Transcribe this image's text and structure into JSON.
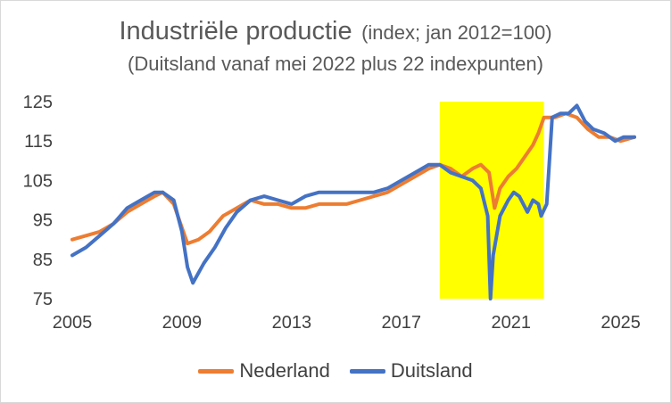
{
  "chart_data": {
    "type": "line",
    "title": "Industriële productie",
    "title_note": "(index; jan 2012=100)",
    "subtitle": "(Duitsland vanaf mei 2022 plus 22 indexpunten)",
    "xlabel": "",
    "ylabel": "",
    "xlim": [
      2005,
      2025.5
    ],
    "ylim": [
      75,
      125
    ],
    "x_ticks": [
      2005,
      2009,
      2013,
      2017,
      2021,
      2025
    ],
    "y_ticks": [
      75,
      85,
      95,
      105,
      115,
      125
    ],
    "grid": false,
    "legend_position": "bottom",
    "highlight_band": {
      "x_start": 2018.4,
      "x_end": 2022.2,
      "color": "#ffff00"
    },
    "series": [
      {
        "name": "Nederland",
        "color": "#ed7d31",
        "x": [
          2005.0,
          2005.5,
          2006.0,
          2006.5,
          2007.0,
          2007.5,
          2008.0,
          2008.3,
          2008.7,
          2009.0,
          2009.2,
          2009.6,
          2010.0,
          2010.5,
          2011.0,
          2011.5,
          2012.0,
          2012.5,
          2013.0,
          2013.5,
          2014.0,
          2014.5,
          2015.0,
          2015.5,
          2016.0,
          2016.5,
          2017.0,
          2017.5,
          2018.0,
          2018.4,
          2018.8,
          2019.2,
          2019.6,
          2019.9,
          2020.2,
          2020.4,
          2020.6,
          2020.9,
          2021.2,
          2021.5,
          2021.8,
          2022.0,
          2022.2,
          2022.6,
          2023.0,
          2023.4,
          2023.8,
          2024.2,
          2024.6,
          2025.0,
          2025.5
        ],
        "values": [
          90,
          91,
          92,
          94,
          97,
          99,
          101,
          102,
          99,
          93,
          89,
          90,
          92,
          96,
          98,
          100,
          99,
          99,
          98,
          98,
          99,
          99,
          99,
          100,
          101,
          102,
          104,
          106,
          108,
          109,
          108,
          106,
          108,
          109,
          107,
          98,
          103,
          106,
          108,
          111,
          114,
          117,
          121,
          121,
          122,
          121,
          118,
          116,
          116,
          115,
          116
        ]
      },
      {
        "name": "Duitsland",
        "color": "#4472c4",
        "x": [
          2005.0,
          2005.5,
          2006.0,
          2006.5,
          2007.0,
          2007.5,
          2008.0,
          2008.3,
          2008.7,
          2009.0,
          2009.2,
          2009.4,
          2009.8,
          2010.2,
          2010.6,
          2011.0,
          2011.5,
          2012.0,
          2012.5,
          2013.0,
          2013.5,
          2014.0,
          2014.5,
          2015.0,
          2015.5,
          2016.0,
          2016.5,
          2017.0,
          2017.5,
          2018.0,
          2018.4,
          2018.8,
          2019.2,
          2019.6,
          2019.9,
          2020.15,
          2020.25,
          2020.35,
          2020.6,
          2020.9,
          2021.1,
          2021.3,
          2021.6,
          2021.8,
          2022.0,
          2022.1,
          2022.3,
          2022.5,
          2022.8,
          2023.1,
          2023.4,
          2023.7,
          2024.0,
          2024.4,
          2024.8,
          2025.1,
          2025.5
        ],
        "values": [
          86,
          88,
          91,
          94,
          98,
          100,
          102,
          102,
          100,
          92,
          83,
          79,
          84,
          88,
          93,
          97,
          100,
          101,
          100,
          99,
          101,
          102,
          102,
          102,
          102,
          102,
          103,
          105,
          107,
          109,
          109,
          107,
          106,
          105,
          103,
          96,
          75,
          86,
          96,
          100,
          102,
          101,
          97,
          100,
          99,
          96,
          99,
          121,
          122,
          122,
          124,
          120,
          118,
          117,
          115,
          116,
          116
        ]
      }
    ]
  }
}
